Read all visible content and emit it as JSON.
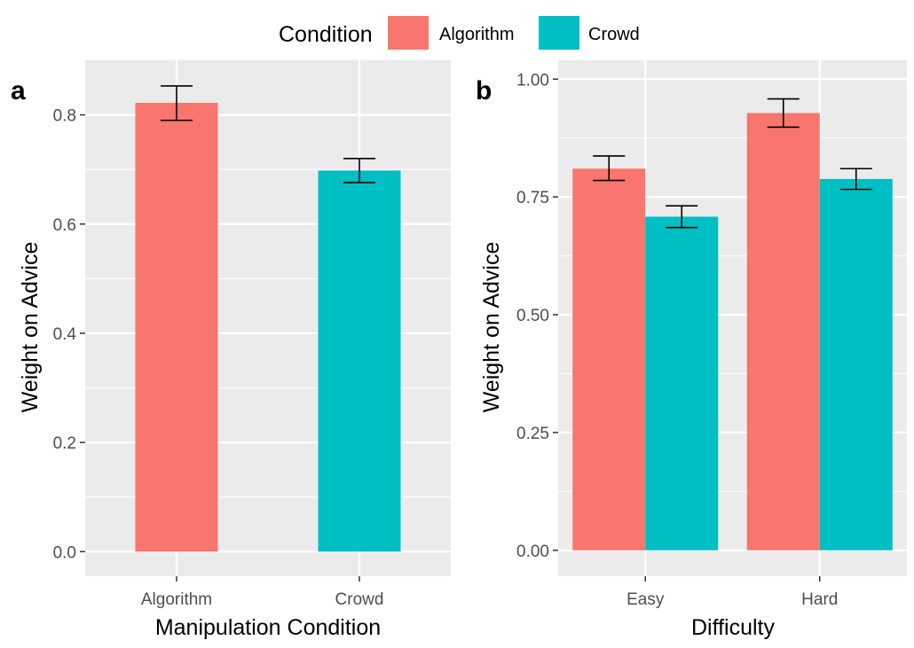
{
  "legend": {
    "title": "Condition",
    "entries": [
      {
        "label": "Algorithm",
        "color": "#F8766D"
      },
      {
        "label": "Crowd",
        "color": "#00BFC4"
      }
    ]
  },
  "chart_data": [
    {
      "panel": "a",
      "type": "bar",
      "xlabel": "Manipulation Condition",
      "ylabel": "Weight on Advice",
      "categories": [
        "Algorithm",
        "Crowd"
      ],
      "values": [
        0.822,
        0.698
      ],
      "error_low": [
        0.79,
        0.676
      ],
      "error_high": [
        0.853,
        0.72
      ],
      "colors": [
        "#F8766D",
        "#00BFC4"
      ],
      "ylim": [
        -0.045,
        0.9
      ],
      "yticks": [
        0.0,
        0.2,
        0.4,
        0.6,
        0.8
      ],
      "ytick_labels": [
        "0.0",
        "0.2",
        "0.4",
        "0.6",
        "0.8"
      ],
      "grid": true
    },
    {
      "panel": "b",
      "type": "bar",
      "xlabel": "Difficulty",
      "ylabel": "Weight on Advice",
      "categories": [
        "Easy",
        "Hard"
      ],
      "series": [
        {
          "name": "Algorithm",
          "values": [
            0.81,
            0.928
          ],
          "error_low": [
            0.785,
            0.898
          ],
          "error_high": [
            0.837,
            0.958
          ],
          "color": "#F8766D"
        },
        {
          "name": "Crowd",
          "values": [
            0.708,
            0.788
          ],
          "error_low": [
            0.685,
            0.766
          ],
          "error_high": [
            0.731,
            0.81
          ],
          "color": "#00BFC4"
        }
      ],
      "ylim": [
        -0.055,
        1.04
      ],
      "yticks": [
        0.0,
        0.25,
        0.5,
        0.75,
        1.0
      ],
      "ytick_labels": [
        "0.00",
        "0.25",
        "0.50",
        "0.75",
        "1.00"
      ],
      "grid": true
    }
  ]
}
